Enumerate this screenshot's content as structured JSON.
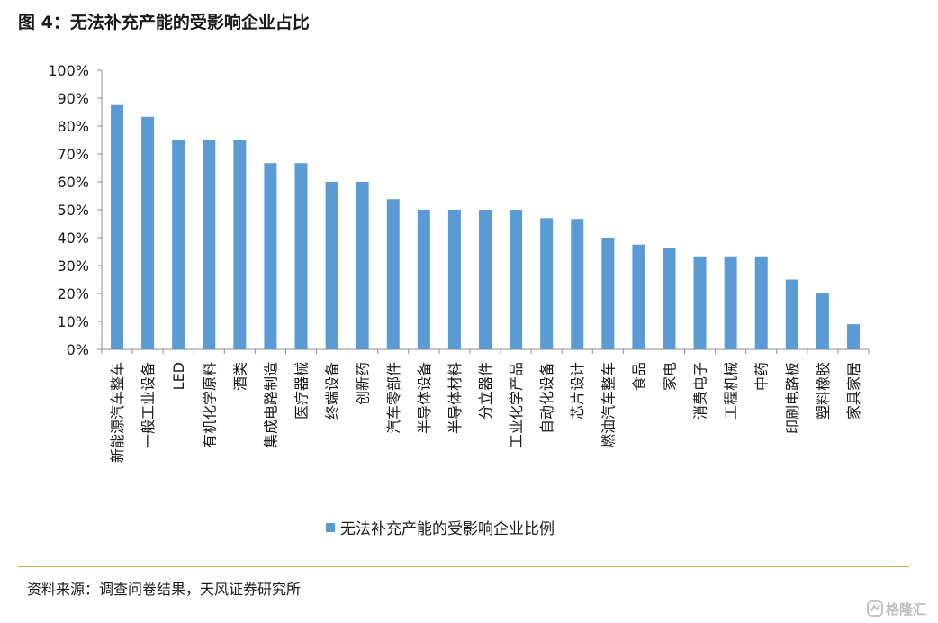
{
  "figure": {
    "title": "图 4：无法补充产能的受影响企业占比",
    "source": "资料来源：调查问卷结果，天风证券研究所",
    "watermark": "格隆汇"
  },
  "colors": {
    "bar": "#5b9bd5",
    "rule": "#d9a35a",
    "axis": "#8c8c8c"
  },
  "chart_data": {
    "type": "bar",
    "categories": [
      "新能源汽车整车",
      "一般工业设备",
      "LED",
      "有机化学原料",
      "酒类",
      "集成电路制造",
      "医疗器械",
      "终端设备",
      "创新药",
      "汽车零部件",
      "半导体设备",
      "半导体材料",
      "分立器件",
      "工业化学产品",
      "自动化设备",
      "芯片设计",
      "燃油汽车整车",
      "食品",
      "家电",
      "消费电子",
      "工程机械",
      "中药",
      "印刷电路板",
      "塑料橡胶",
      "家具家居"
    ],
    "series": [
      {
        "name": "无法补充产能的受影响企业比例",
        "values": [
          87.5,
          83.3,
          75,
          75,
          75,
          66.7,
          66.7,
          60,
          60,
          53.8,
          50,
          50,
          50,
          50,
          47,
          46.7,
          40,
          37.5,
          36.4,
          33.3,
          33.3,
          33.3,
          25,
          20,
          9
        ]
      }
    ],
    "ylim": [
      0,
      100
    ],
    "yticks": [
      "0%",
      "10%",
      "20%",
      "30%",
      "40%",
      "50%",
      "60%",
      "70%",
      "80%",
      "90%",
      "100%"
    ],
    "grid": false,
    "legend_position": "bottom"
  }
}
